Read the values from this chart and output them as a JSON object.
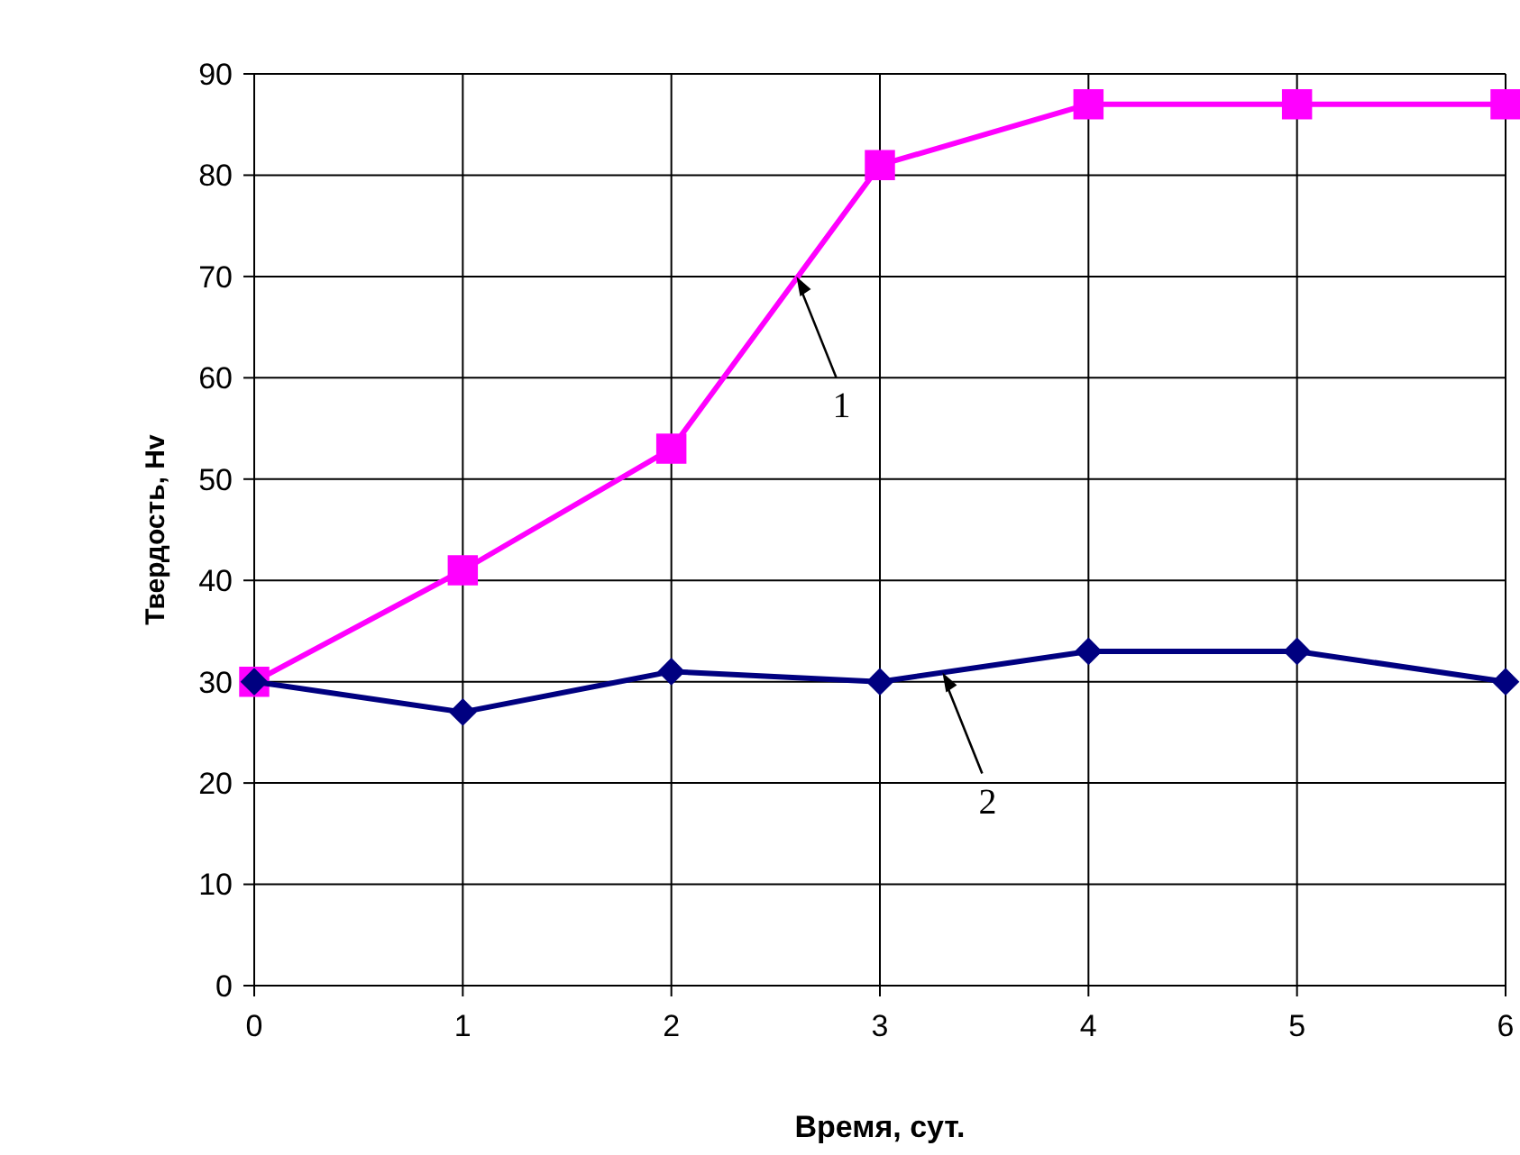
{
  "chart_data": {
    "type": "line",
    "xlabel": "Время, сут.",
    "ylabel": "Твердость, Hv",
    "x": [
      0,
      1,
      2,
      3,
      4,
      5,
      6
    ],
    "xlim": [
      0,
      6
    ],
    "xticks": [
      0,
      1,
      2,
      3,
      4,
      5,
      6
    ],
    "ylim": [
      0,
      90
    ],
    "yticks": [
      0,
      10,
      20,
      30,
      40,
      50,
      60,
      70,
      80,
      90
    ],
    "grid": true,
    "series": [
      {
        "color": "#ff00ff",
        "marker": "square",
        "values": [
          30,
          41,
          53,
          81,
          87,
          87,
          87
        ]
      },
      {
        "color": "#000080",
        "marker": "diamond",
        "values": [
          30,
          27,
          31,
          30,
          33,
          33,
          30
        ]
      }
    ],
    "annotations": [
      {
        "text": "1",
        "x": 2.6,
        "y": 70
      },
      {
        "text": "2",
        "x": 3.3,
        "y": 30.9
      }
    ]
  }
}
